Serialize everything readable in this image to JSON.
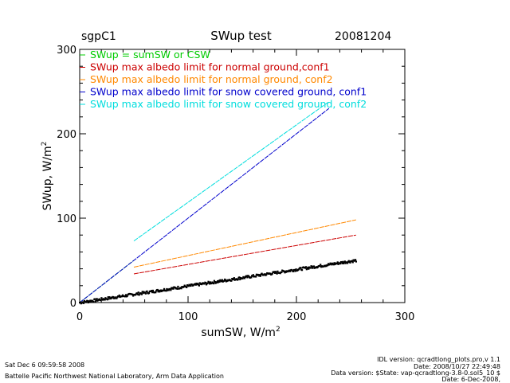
{
  "header": {
    "site": "sgpC1",
    "title": "SWup test",
    "date": "20081204"
  },
  "footer": {
    "timestamp": "Sat Dec  6 09:59:58 2008",
    "org": "Battelle Pacific Northwest National Laboratory, Arm Data Application",
    "idl_version": "IDL version: qcradtlong_plots.pro,v 1.1",
    "idl_date": "Date: 2008/10/27 22:49:48",
    "data_version": "Data version: $State: vap-qcradtlong-3.8-0.sol5_10 $",
    "data_date": "Date: 6-Dec-2008,"
  },
  "chart_data": {
    "type": "scatter",
    "title": "SWup test",
    "xlabel": "sumSW, W/m",
    "xlabel_sup": "2",
    "ylabel": "SWup, W/m",
    "ylabel_sup": "2",
    "xlim": [
      0,
      300
    ],
    "ylim": [
      0,
      300
    ],
    "xticks": [
      0,
      100,
      200,
      300
    ],
    "yticks": [
      0,
      100,
      200,
      300
    ],
    "grid": false,
    "legend_placement": "top-left",
    "series": [
      {
        "name": "SWup = sumSW or CSW",
        "color": "#00cc00",
        "kind": "line",
        "x": [
          0,
          50
        ],
        "y": [
          0,
          50
        ]
      },
      {
        "name": "SWup max albedo limit for normal ground,conf1",
        "color": "#cc0000",
        "kind": "line",
        "x": [
          50,
          255
        ],
        "y": [
          34,
          80
        ]
      },
      {
        "name": "SWup max albedo limit for normal ground, conf2",
        "color": "#ff8800",
        "kind": "line",
        "x": [
          50,
          255
        ],
        "y": [
          42,
          98
        ]
      },
      {
        "name": "SWup max albedo limit for snow covered ground, conf1",
        "color": "#0000cc",
        "kind": "line",
        "x": [
          0,
          230
        ],
        "y": [
          0,
          230
        ]
      },
      {
        "name": "SWup max albedo limit for snow covered ground, conf2",
        "color": "#00dddd",
        "kind": "line",
        "x": [
          50,
          230
        ],
        "y": [
          73,
          238
        ]
      },
      {
        "name": "",
        "color": "#000000",
        "kind": "points",
        "x": [
          0,
          255
        ],
        "y": [
          0,
          50
        ]
      }
    ]
  }
}
